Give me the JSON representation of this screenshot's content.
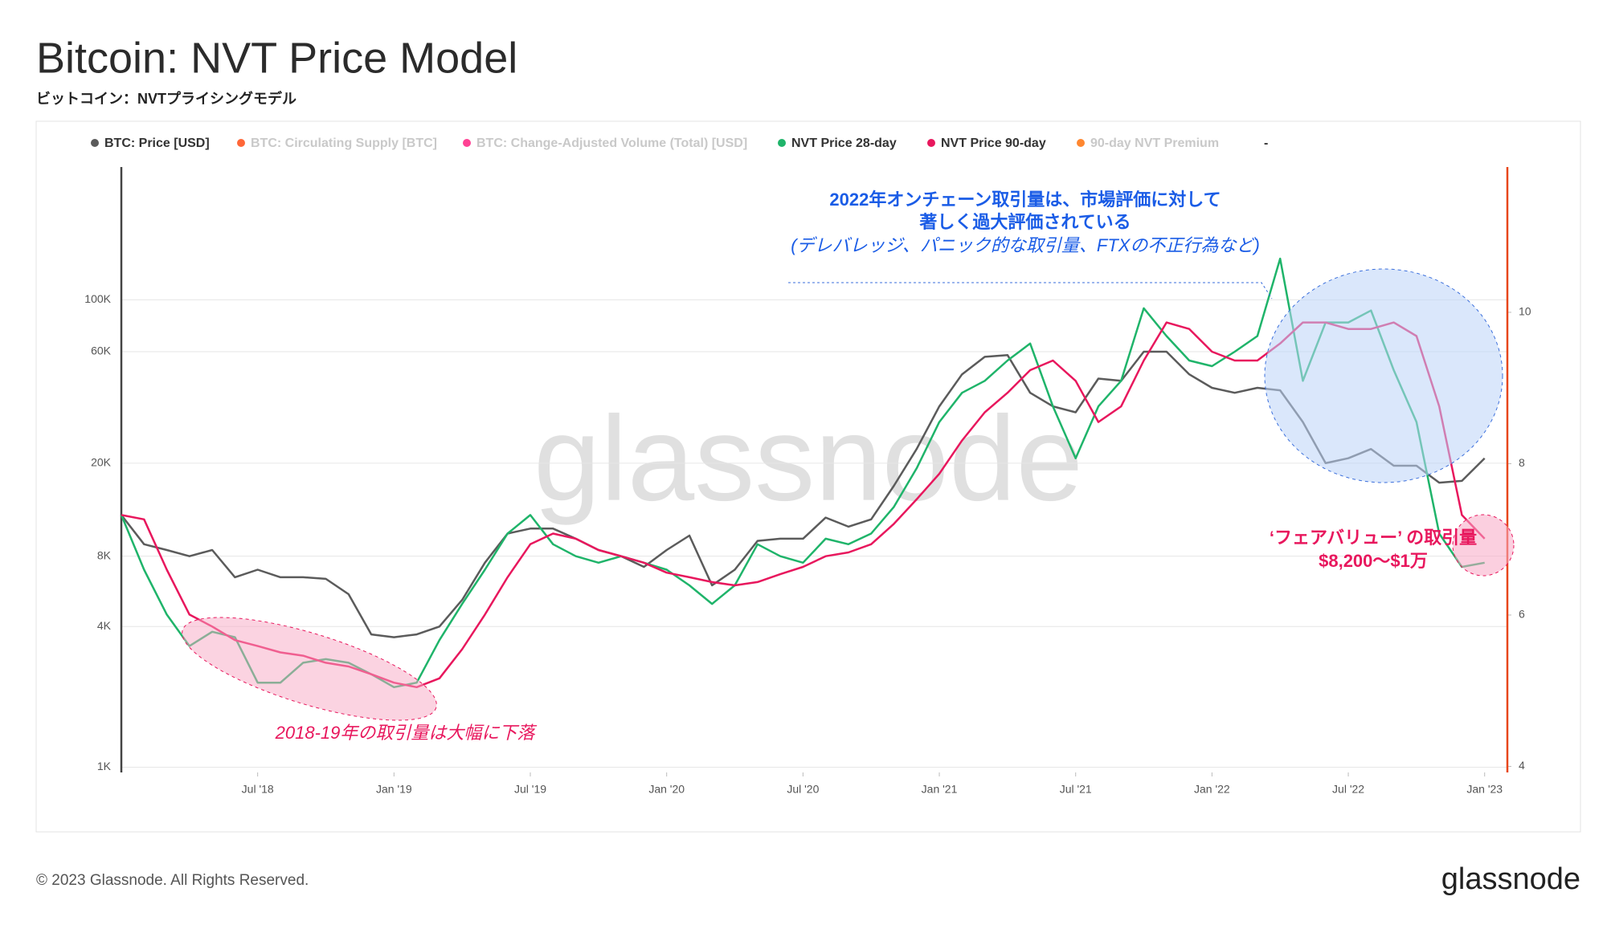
{
  "chart_data": {
    "type": "line",
    "title": "Bitcoin: NVT Price Model",
    "subtitle": "ビットコイン：NVTプライシングモデル",
    "watermark": "glassnode",
    "footer": "© 2023 Glassnode. All Rights Reserved.",
    "logo": "glassnode",
    "log_scale": true,
    "grid": true,
    "x": [
      "2018-01",
      "2018-02",
      "2018-03",
      "2018-04",
      "2018-05",
      "2018-06",
      "2018-07",
      "2018-08",
      "2018-09",
      "2018-10",
      "2018-11",
      "2018-12",
      "2019-01",
      "2019-02",
      "2019-03",
      "2019-04",
      "2019-05",
      "2019-06",
      "2019-07",
      "2019-08",
      "2019-09",
      "2019-10",
      "2019-11",
      "2019-12",
      "2020-01",
      "2020-02",
      "2020-03",
      "2020-04",
      "2020-05",
      "2020-06",
      "2020-07",
      "2020-08",
      "2020-09",
      "2020-10",
      "2020-11",
      "2020-12",
      "2021-01",
      "2021-02",
      "2021-03",
      "2021-04",
      "2021-05",
      "2021-06",
      "2021-07",
      "2021-08",
      "2021-09",
      "2021-10",
      "2021-11",
      "2021-12",
      "2022-01",
      "2022-02",
      "2022-03",
      "2022-04",
      "2022-05",
      "2022-06",
      "2022-07",
      "2022-08",
      "2022-09",
      "2022-10",
      "2022-11",
      "2022-12",
      "2023-01"
    ],
    "xlim": [
      "2018-01",
      "2023-02"
    ],
    "xticks": [
      {
        "value": "2018-07",
        "label": "Jul '18"
      },
      {
        "value": "2019-01",
        "label": "Jan '19"
      },
      {
        "value": "2019-07",
        "label": "Jul '19"
      },
      {
        "value": "2020-01",
        "label": "Jan '20"
      },
      {
        "value": "2020-07",
        "label": "Jul '20"
      },
      {
        "value": "2021-01",
        "label": "Jan '21"
      },
      {
        "value": "2021-07",
        "label": "Jul '21"
      },
      {
        "value": "2022-01",
        "label": "Jan '22"
      },
      {
        "value": "2022-07",
        "label": "Jul '22"
      },
      {
        "value": "2023-01",
        "label": "Jan '23"
      }
    ],
    "ylim": [
      950,
      370000
    ],
    "yticks": [
      {
        "value": 1000,
        "label": "1K"
      },
      {
        "value": 4000,
        "label": "4K"
      },
      {
        "value": 8000,
        "label": "8K"
      },
      {
        "value": 20000,
        "label": "20K"
      },
      {
        "value": 60000,
        "label": "60K"
      },
      {
        "value": 100000,
        "label": "100K"
      }
    ],
    "y2lim": [
      3.92,
      11.92
    ],
    "y2ticks": [
      4,
      6,
      8,
      10
    ],
    "series": [
      {
        "name": "BTC: Price [USD]",
        "color": "#5b5b5b",
        "values": [
          12000,
          9000,
          8500,
          8000,
          8500,
          6500,
          7000,
          6500,
          6500,
          6400,
          5500,
          3700,
          3600,
          3700,
          4000,
          5200,
          7500,
          10000,
          10500,
          10500,
          9500,
          8500,
          8000,
          7200,
          8500,
          9800,
          6000,
          7000,
          9300,
          9500,
          9500,
          11700,
          10700,
          11500,
          16000,
          23000,
          35000,
          48000,
          57000,
          58000,
          40000,
          35000,
          33000,
          46000,
          45000,
          60000,
          60000,
          48000,
          42000,
          40000,
          42000,
          41000,
          30000,
          20000,
          21000,
          23000,
          19500,
          19500,
          16500,
          16800,
          21000
        ]
      },
      {
        "name": "NVT Price 28-day",
        "color": "#1fb46a",
        "values": [
          12000,
          7000,
          4500,
          3300,
          3800,
          3600,
          2300,
          2300,
          2800,
          2900,
          2800,
          2500,
          2200,
          2300,
          3500,
          5000,
          7000,
          10000,
          12000,
          9000,
          8000,
          7500,
          8000,
          7500,
          7000,
          6000,
          5000,
          6000,
          9000,
          8000,
          7500,
          9500,
          9000,
          10000,
          13000,
          19000,
          30000,
          40000,
          45000,
          55000,
          65000,
          35000,
          21000,
          35000,
          45000,
          92000,
          70000,
          55000,
          52000,
          60000,
          70000,
          150000,
          45000,
          80000,
          80000,
          90000,
          50000,
          30000,
          10000,
          7200,
          7500
        ]
      },
      {
        "name": "NVT Price 90-day",
        "color": "#e8175d",
        "values": [
          12000,
          11500,
          7000,
          4500,
          4000,
          3500,
          3300,
          3100,
          3000,
          2800,
          2700,
          2500,
          2300,
          2200,
          2400,
          3200,
          4500,
          6500,
          9000,
          10000,
          9500,
          8500,
          8000,
          7500,
          6800,
          6500,
          6200,
          6000,
          6200,
          6700,
          7200,
          8000,
          8300,
          9000,
          11000,
          14000,
          18000,
          25000,
          33000,
          40000,
          50000,
          55000,
          45000,
          30000,
          35000,
          55000,
          80000,
          75000,
          60000,
          55000,
          55000,
          65000,
          80000,
          80000,
          75000,
          75000,
          80000,
          70000,
          35000,
          12000,
          9500
        ]
      }
    ],
    "hidden_series": [
      {
        "name": "BTC: Circulating Supply [BTC]",
        "color": "#ff5722"
      },
      {
        "name": "BTC: Change-Adjusted Volume (Total) [USD]",
        "color": "#ff2e88"
      },
      {
        "name": "90-day NVT Premium",
        "color": "#ff7a1a"
      }
    ],
    "legend_extra": "-",
    "annotations": {
      "blue": [
        "2022年オンチェーン取引量は、市場評価に対して",
        "著しく過大評価されている",
        "(デレバレッジ、パニック的な取引量、FTXの不正行為など)"
      ],
      "fair": [
        "‘フェアバリュー’ の取引量",
        "$8,200～$1万"
      ],
      "low": "2018-19年の取引量は大幅に下落"
    }
  }
}
